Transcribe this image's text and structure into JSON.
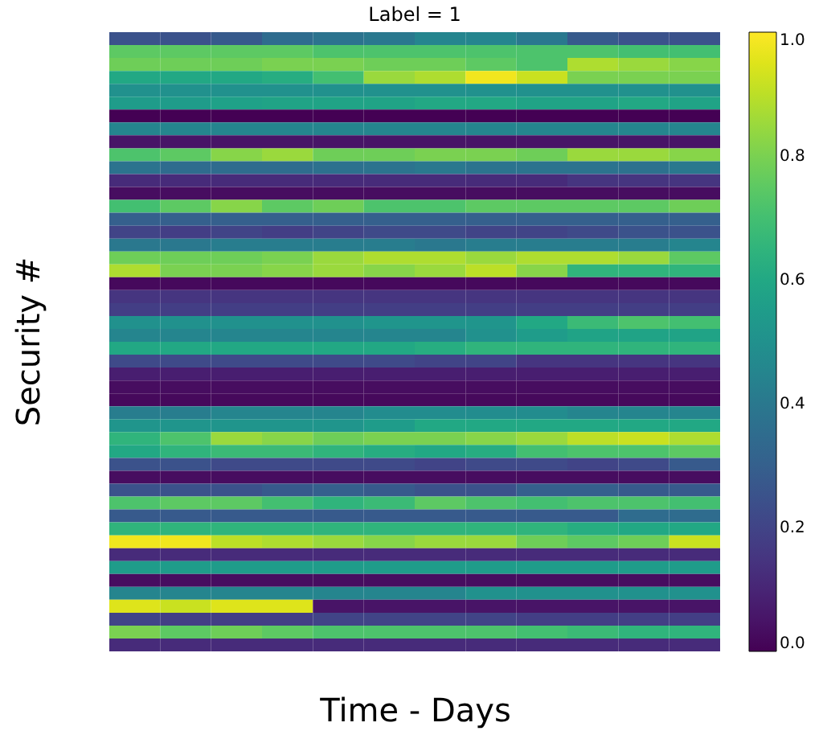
{
  "chart_data": {
    "type": "heatmap",
    "title": "Label = 1",
    "xlabel": "Time - Days",
    "ylabel": "Security #",
    "categories": [
      null,
      null,
      null,
      null,
      null,
      null,
      null,
      null,
      null,
      null,
      null,
      null
    ],
    "y_categories": [
      null,
      null,
      null,
      null,
      null,
      null,
      null,
      null,
      null,
      null,
      null,
      null,
      null,
      null,
      null,
      null,
      null,
      null,
      null,
      null,
      null,
      null,
      null,
      null,
      null,
      null,
      null,
      null,
      null,
      null,
      null,
      null,
      null,
      null,
      null,
      null,
      null,
      null,
      null,
      null,
      null,
      null,
      null,
      null,
      null,
      null,
      null,
      null
    ],
    "cells": [
      [
        0.25,
        0.25,
        0.28,
        0.35,
        0.38,
        0.4,
        0.45,
        0.45,
        0.4,
        0.28,
        0.25,
        0.25
      ],
      [
        0.75,
        0.75,
        0.75,
        0.75,
        0.72,
        0.72,
        0.72,
        0.72,
        0.72,
        0.72,
        0.7,
        0.7
      ],
      [
        0.78,
        0.78,
        0.78,
        0.8,
        0.8,
        0.78,
        0.78,
        0.75,
        0.72,
        0.88,
        0.85,
        0.82
      ],
      [
        0.6,
        0.6,
        0.6,
        0.62,
        0.7,
        0.85,
        0.88,
        0.98,
        0.92,
        0.8,
        0.8,
        0.8
      ],
      [
        0.5,
        0.5,
        0.5,
        0.5,
        0.5,
        0.5,
        0.5,
        0.5,
        0.5,
        0.5,
        0.5,
        0.5
      ],
      [
        0.55,
        0.55,
        0.57,
        0.58,
        0.58,
        0.58,
        0.6,
        0.6,
        0.58,
        0.58,
        0.6,
        0.58
      ],
      [
        0.0,
        0.0,
        0.0,
        0.0,
        0.0,
        0.0,
        0.0,
        0.0,
        0.0,
        0.0,
        0.0,
        0.0
      ],
      [
        0.45,
        0.45,
        0.45,
        0.45,
        0.45,
        0.45,
        0.45,
        0.45,
        0.45,
        0.45,
        0.45,
        0.45
      ],
      [
        0.05,
        0.05,
        0.05,
        0.05,
        0.05,
        0.05,
        0.05,
        0.05,
        0.05,
        0.05,
        0.05,
        0.05
      ],
      [
        0.72,
        0.75,
        0.82,
        0.85,
        0.78,
        0.78,
        0.8,
        0.8,
        0.78,
        0.85,
        0.85,
        0.82
      ],
      [
        0.38,
        0.35,
        0.35,
        0.35,
        0.37,
        0.38,
        0.4,
        0.38,
        0.38,
        0.38,
        0.37,
        0.4
      ],
      [
        0.12,
        0.12,
        0.12,
        0.12,
        0.12,
        0.12,
        0.12,
        0.12,
        0.12,
        0.15,
        0.15,
        0.15
      ],
      [
        0.03,
        0.03,
        0.03,
        0.03,
        0.03,
        0.03,
        0.03,
        0.03,
        0.03,
        0.03,
        0.03,
        0.03
      ],
      [
        0.7,
        0.75,
        0.82,
        0.75,
        0.78,
        0.72,
        0.72,
        0.75,
        0.75,
        0.75,
        0.75,
        0.78
      ],
      [
        0.3,
        0.3,
        0.3,
        0.3,
        0.3,
        0.3,
        0.3,
        0.3,
        0.3,
        0.3,
        0.3,
        0.3
      ],
      [
        0.2,
        0.18,
        0.2,
        0.18,
        0.2,
        0.22,
        0.22,
        0.2,
        0.2,
        0.22,
        0.25,
        0.25
      ],
      [
        0.4,
        0.4,
        0.42,
        0.42,
        0.42,
        0.42,
        0.4,
        0.42,
        0.42,
        0.42,
        0.42,
        0.45
      ],
      [
        0.78,
        0.78,
        0.78,
        0.8,
        0.85,
        0.88,
        0.88,
        0.85,
        0.88,
        0.88,
        0.85,
        0.75
      ],
      [
        0.88,
        0.8,
        0.8,
        0.82,
        0.85,
        0.82,
        0.85,
        0.9,
        0.82,
        0.65,
        0.65,
        0.65
      ],
      [
        0.02,
        0.02,
        0.02,
        0.02,
        0.02,
        0.02,
        0.02,
        0.02,
        0.02,
        0.02,
        0.02,
        0.02
      ],
      [
        0.15,
        0.15,
        0.15,
        0.15,
        0.15,
        0.15,
        0.15,
        0.15,
        0.15,
        0.15,
        0.15,
        0.15
      ],
      [
        0.18,
        0.18,
        0.18,
        0.18,
        0.18,
        0.18,
        0.18,
        0.18,
        0.18,
        0.18,
        0.18,
        0.18
      ],
      [
        0.5,
        0.5,
        0.5,
        0.5,
        0.5,
        0.52,
        0.52,
        0.52,
        0.6,
        0.68,
        0.72,
        0.7
      ],
      [
        0.45,
        0.45,
        0.45,
        0.45,
        0.45,
        0.45,
        0.45,
        0.5,
        0.55,
        0.58,
        0.58,
        0.58
      ],
      [
        0.6,
        0.6,
        0.6,
        0.6,
        0.6,
        0.6,
        0.62,
        0.65,
        0.65,
        0.65,
        0.65,
        0.65
      ],
      [
        0.22,
        0.22,
        0.22,
        0.22,
        0.22,
        0.22,
        0.2,
        0.2,
        0.15,
        0.15,
        0.15,
        0.15
      ],
      [
        0.08,
        0.08,
        0.08,
        0.08,
        0.08,
        0.08,
        0.08,
        0.08,
        0.08,
        0.08,
        0.08,
        0.08
      ],
      [
        0.03,
        0.03,
        0.03,
        0.03,
        0.03,
        0.03,
        0.03,
        0.03,
        0.03,
        0.03,
        0.03,
        0.03
      ],
      [
        0.02,
        0.02,
        0.02,
        0.02,
        0.02,
        0.02,
        0.02,
        0.02,
        0.02,
        0.02,
        0.02,
        0.02
      ],
      [
        0.42,
        0.42,
        0.45,
        0.45,
        0.45,
        0.48,
        0.48,
        0.48,
        0.48,
        0.45,
        0.45,
        0.45
      ],
      [
        0.52,
        0.52,
        0.52,
        0.52,
        0.52,
        0.55,
        0.6,
        0.6,
        0.6,
        0.6,
        0.6,
        0.6
      ],
      [
        0.65,
        0.72,
        0.85,
        0.82,
        0.78,
        0.8,
        0.8,
        0.82,
        0.85,
        0.9,
        0.92,
        0.88
      ],
      [
        0.6,
        0.65,
        0.68,
        0.68,
        0.65,
        0.62,
        0.6,
        0.62,
        0.7,
        0.72,
        0.72,
        0.75
      ],
      [
        0.25,
        0.25,
        0.22,
        0.22,
        0.22,
        0.22,
        0.2,
        0.22,
        0.22,
        0.2,
        0.22,
        0.28
      ],
      [
        0.03,
        0.03,
        0.03,
        0.03,
        0.03,
        0.03,
        0.03,
        0.03,
        0.03,
        0.03,
        0.03,
        0.03
      ],
      [
        0.25,
        0.25,
        0.25,
        0.28,
        0.3,
        0.28,
        0.25,
        0.25,
        0.3,
        0.3,
        0.28,
        0.28
      ],
      [
        0.72,
        0.75,
        0.75,
        0.7,
        0.65,
        0.68,
        0.75,
        0.72,
        0.7,
        0.72,
        0.72,
        0.7
      ],
      [
        0.28,
        0.28,
        0.28,
        0.28,
        0.28,
        0.28,
        0.28,
        0.28,
        0.28,
        0.28,
        0.35,
        0.35
      ],
      [
        0.65,
        0.65,
        0.65,
        0.65,
        0.65,
        0.65,
        0.65,
        0.65,
        0.65,
        0.62,
        0.6,
        0.6
      ],
      [
        0.98,
        0.98,
        0.9,
        0.88,
        0.85,
        0.82,
        0.85,
        0.85,
        0.78,
        0.75,
        0.78,
        0.92
      ],
      [
        0.12,
        0.12,
        0.12,
        0.12,
        0.12,
        0.12,
        0.12,
        0.12,
        0.12,
        0.12,
        0.12,
        0.12
      ],
      [
        0.55,
        0.55,
        0.55,
        0.55,
        0.55,
        0.55,
        0.55,
        0.55,
        0.55,
        0.55,
        0.55,
        0.55
      ],
      [
        0.03,
        0.03,
        0.03,
        0.03,
        0.03,
        0.03,
        0.03,
        0.03,
        0.03,
        0.03,
        0.03,
        0.03
      ],
      [
        0.45,
        0.45,
        0.45,
        0.45,
        0.45,
        0.45,
        0.45,
        0.5,
        0.5,
        0.5,
        0.5,
        0.5
      ],
      [
        0.95,
        0.92,
        0.95,
        0.95,
        0.05,
        0.05,
        0.05,
        0.05,
        0.05,
        0.05,
        0.05,
        0.05
      ],
      [
        0.2,
        0.18,
        0.18,
        0.18,
        0.2,
        0.2,
        0.2,
        0.2,
        0.18,
        0.18,
        0.18,
        0.18
      ],
      [
        0.8,
        0.75,
        0.78,
        0.75,
        0.72,
        0.72,
        0.72,
        0.72,
        0.7,
        0.68,
        0.65,
        0.65
      ],
      [
        0.12,
        0.12,
        0.12,
        0.12,
        0.12,
        0.12,
        0.12,
        0.12,
        0.12,
        0.12,
        0.12,
        0.12
      ]
    ],
    "clim": [
      0.0,
      1.0
    ],
    "cticks": [
      {
        "value": 0,
        "label": "0.0"
      },
      {
        "value": 0.2,
        "label": "0.2"
      },
      {
        "value": 0.4,
        "label": "0.4"
      },
      {
        "value": 0.6,
        "label": "0.6"
      },
      {
        "value": 0.8,
        "label": "0.8"
      },
      {
        "value": 1,
        "label": "1.0"
      }
    ],
    "tick_labels": false
  }
}
